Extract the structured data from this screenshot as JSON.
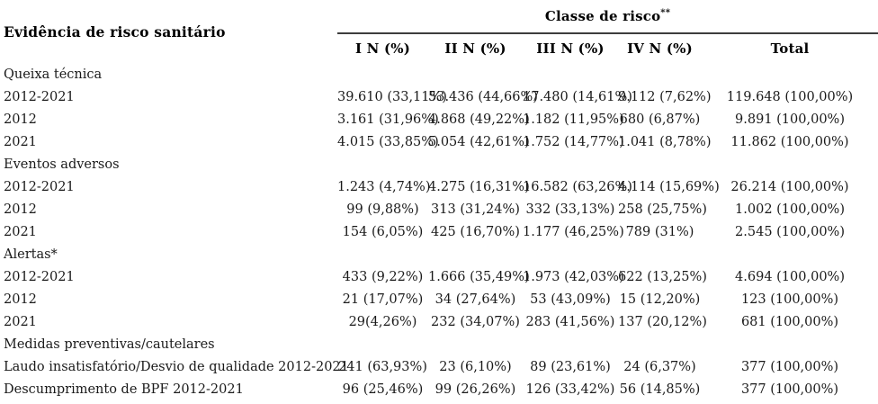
{
  "table": {
    "row_header_title": "Evidência de risco sanitário",
    "col_group_title": "Classe de risco",
    "col_group_footnote_marker": "**",
    "columns": [
      "I N (%)",
      "II N (%)",
      "III N (%)",
      "IV N (%)",
      "Total"
    ],
    "sections": [
      {
        "label": "Queixa técnica",
        "rows": [
          {
            "label": "2012-2021",
            "values": [
              "39.610 (33,11%)",
              "53.436 (44,66%)",
              "17.480 (14,61%)",
              "9.112 (7,62%)",
              "119.648 (100,00%)"
            ]
          },
          {
            "label": "2012",
            "values": [
              "3.161 (31,96%)",
              "4.868 (49,22%)",
              "1.182 (11,95%)",
              "680 (6,87%)",
              "9.891 (100,00%)"
            ]
          },
          {
            "label": "2021",
            "values": [
              "4.015 (33,85%)",
              "5.054 (42,61%)",
              "1.752 (14,77%)",
              "1.041 (8,78%)",
              "11.862 (100,00%)"
            ]
          }
        ]
      },
      {
        "label": "Eventos adversos",
        "rows": [
          {
            "label": "2012-2021",
            "values": [
              "1.243 (4,74%)",
              "4.275 (16,31%)",
              "16.582 (63,26%)",
              "4.114 (15,69%)",
              "26.214 (100,00%)"
            ]
          },
          {
            "label": "2012",
            "values": [
              "99 (9,88%)",
              "313 (31,24%)",
              "332 (33,13%)",
              "258 (25,75%)",
              "1.002 (100,00%)"
            ]
          },
          {
            "label": "2021",
            "values": [
              "154 (6,05%)",
              "425 (16,70%)",
              "1.177 (46,25%)",
              "789 (31%)",
              "2.545 (100,00%)"
            ]
          }
        ]
      },
      {
        "label": "Alertas*",
        "rows": [
          {
            "label": "2012-2021",
            "values": [
              "433 (9,22%)",
              "1.666 (35,49%)",
              "1.973 (42,03%)",
              "622 (13,25%)",
              "4.694 (100,00%)"
            ]
          },
          {
            "label": "2012",
            "values": [
              "21 (17,07%)",
              "34 (27,64%)",
              "53 (43,09%)",
              "15 (12,20%)",
              "123 (100,00%)"
            ]
          },
          {
            "label": "2021",
            "values": [
              "29(4,26%)",
              "232 (34,07%)",
              "283 (41,56%)",
              "137 (20,12%)",
              "681 (100,00%)"
            ]
          }
        ]
      },
      {
        "label": "Medidas preventivas/cautelares",
        "rows": [
          {
            "label": "Laudo insatisfatório/Desvio de qualidade 2012-2021",
            "values": [
              "241 (63,93%)",
              "23 (6,10%)",
              "89 (23,61%)",
              "24 (6,37%)",
              "377 (100,00%)"
            ]
          },
          {
            "label": "Descumprimento de BPF 2012-2021",
            "values": [
              "96 (25,46%)",
              "99 (26,26%)",
              "126 (33,42%)",
              "56 (14,85%)",
              "377 (100,00%)"
            ]
          }
        ]
      }
    ]
  },
  "colors": {
    "background": "#ffffff",
    "text": "#000000",
    "rule": "#3d3d3d"
  }
}
